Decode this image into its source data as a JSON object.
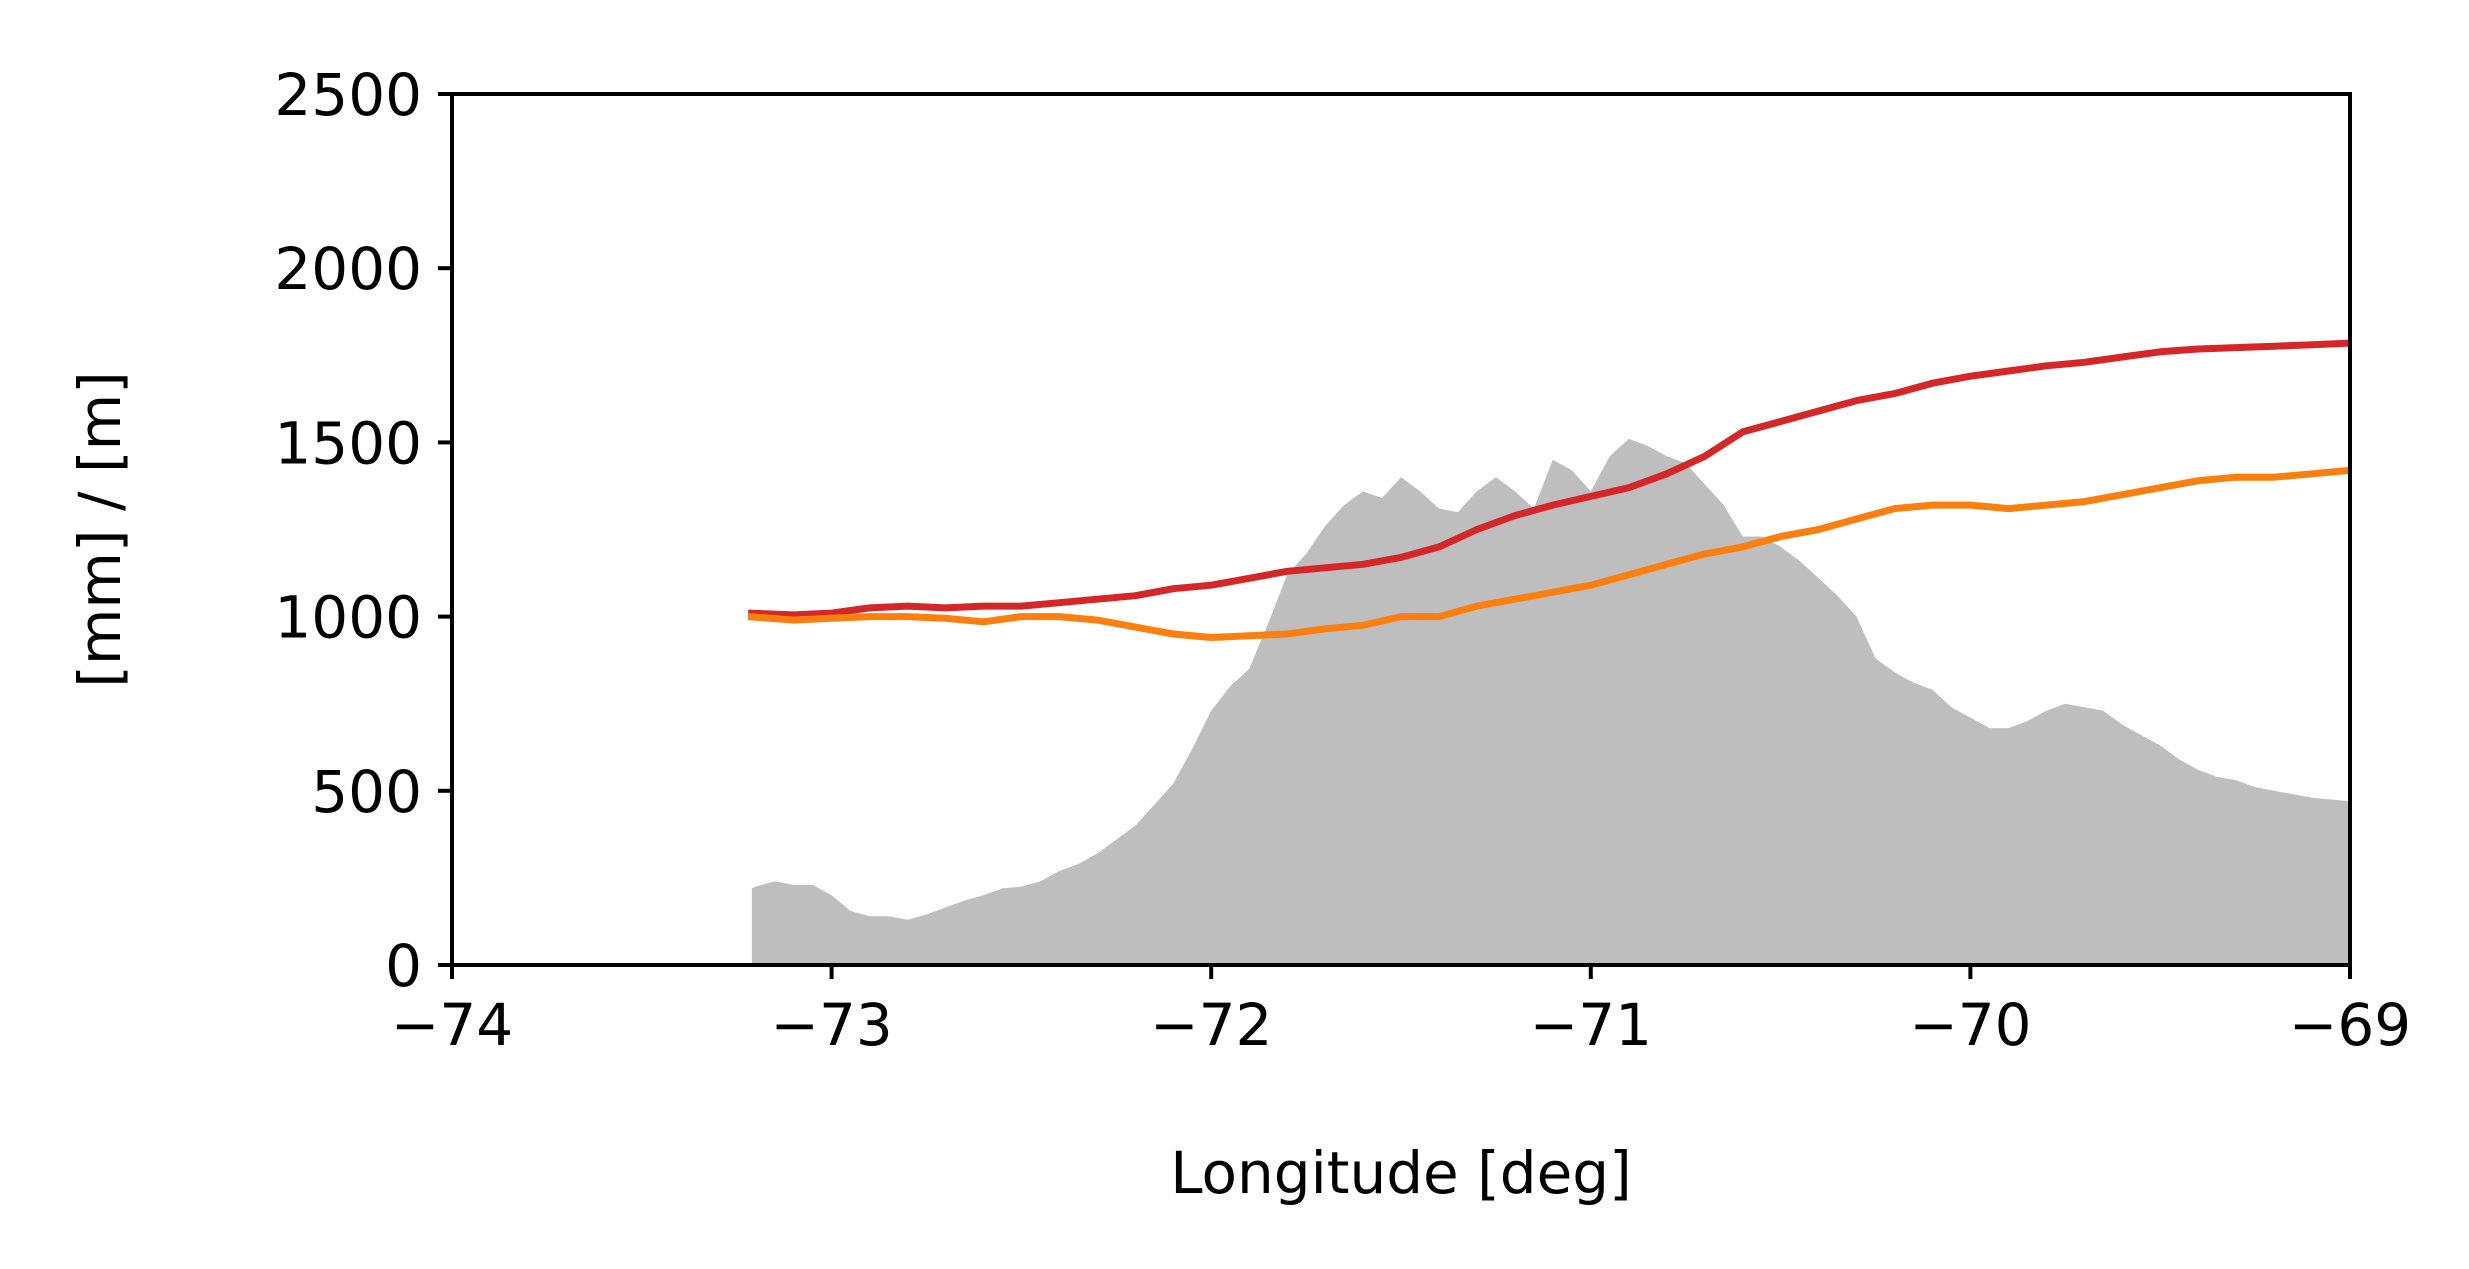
{
  "chart_data": {
    "type": "line",
    "title": "",
    "xlabel": "Longitude [deg]",
    "ylabel": "[mm] / [m]",
    "xlim": [
      -74,
      -69
    ],
    "ylim": [
      0,
      2500
    ],
    "xticks": [
      -74,
      -73,
      -72,
      -71,
      -70,
      -69
    ],
    "xtick_labels": [
      "−74",
      "−73",
      "−72",
      "−71",
      "−70",
      "−69"
    ],
    "yticks": [
      0,
      500,
      1000,
      1500,
      2000,
      2500
    ],
    "ytick_labels": [
      "0",
      "500",
      "1000",
      "1500",
      "2000",
      "2500"
    ],
    "grid": false,
    "legend": "none",
    "series": [
      {
        "kind": "area",
        "color": "#bebebe",
        "x": [
          -73.21,
          -73.2,
          -73.15,
          -73.1,
          -73.05,
          -73.0,
          -72.95,
          -72.9,
          -72.85,
          -72.8,
          -72.75,
          -72.7,
          -72.65,
          -72.6,
          -72.55,
          -72.5,
          -72.45,
          -72.4,
          -72.35,
          -72.3,
          -72.25,
          -72.2,
          -72.15,
          -72.1,
          -72.05,
          -72.0,
          -71.95,
          -71.9,
          -71.85,
          -71.8,
          -71.75,
          -71.7,
          -71.65,
          -71.6,
          -71.55,
          -71.5,
          -71.45,
          -71.4,
          -71.35,
          -71.3,
          -71.25,
          -71.2,
          -71.15,
          -71.1,
          -71.05,
          -71.0,
          -70.95,
          -70.9,
          -70.85,
          -70.8,
          -70.75,
          -70.7,
          -70.65,
          -70.6,
          -70.55,
          -70.5,
          -70.45,
          -70.4,
          -70.35,
          -70.3,
          -70.25,
          -70.2,
          -70.15,
          -70.1,
          -70.05,
          -70.0,
          -69.95,
          -69.9,
          -69.85,
          -69.8,
          -69.75,
          -69.7,
          -69.65,
          -69.6,
          -69.55,
          -69.5,
          -69.45,
          -69.4,
          -69.35,
          -69.3,
          -69.25,
          -69.2,
          -69.15,
          -69.1,
          -69.05,
          -69.0
        ],
        "y": [
          220,
          225,
          240,
          230,
          230,
          200,
          155,
          140,
          140,
          130,
          145,
          165,
          185,
          200,
          220,
          225,
          240,
          270,
          290,
          320,
          360,
          400,
          460,
          520,
          620,
          730,
          800,
          850,
          980,
          1120,
          1180,
          1260,
          1320,
          1360,
          1340,
          1400,
          1360,
          1310,
          1300,
          1360,
          1400,
          1360,
          1310,
          1450,
          1420,
          1360,
          1460,
          1510,
          1490,
          1460,
          1440,
          1380,
          1320,
          1230,
          1230,
          1200,
          1160,
          1110,
          1060,
          1000,
          880,
          840,
          810,
          790,
          740,
          710,
          680,
          680,
          700,
          730,
          750,
          740,
          730,
          690,
          660,
          630,
          590,
          560,
          540,
          530,
          510,
          500,
          490,
          480,
          475,
          470
        ]
      },
      {
        "kind": "line",
        "color": "#d62728",
        "x": [
          -73.22,
          -73.1,
          -73.0,
          -72.9,
          -72.8,
          -72.7,
          -72.6,
          -72.5,
          -72.4,
          -72.3,
          -72.2,
          -72.1,
          -72.0,
          -71.9,
          -71.8,
          -71.7,
          -71.6,
          -71.5,
          -71.4,
          -71.3,
          -71.2,
          -71.1,
          -71.0,
          -70.9,
          -70.8,
          -70.7,
          -70.6,
          -70.5,
          -70.4,
          -70.3,
          -70.2,
          -70.1,
          -70.0,
          -69.9,
          -69.8,
          -69.7,
          -69.6,
          -69.5,
          -69.4,
          -69.3,
          -69.2,
          -69.1,
          -69.0
        ],
        "y": [
          1010,
          1005,
          1010,
          1025,
          1030,
          1025,
          1030,
          1030,
          1040,
          1050,
          1060,
          1080,
          1090,
          1110,
          1130,
          1140,
          1150,
          1170,
          1200,
          1250,
          1290,
          1320,
          1345,
          1370,
          1410,
          1460,
          1530,
          1560,
          1590,
          1620,
          1640,
          1670,
          1690,
          1705,
          1720,
          1730,
          1745,
          1760,
          1768,
          1772,
          1776,
          1780,
          1785
        ]
      },
      {
        "kind": "line",
        "color": "#ff7f0e",
        "x": [
          -73.22,
          -73.1,
          -73.0,
          -72.9,
          -72.8,
          -72.7,
          -72.6,
          -72.5,
          -72.4,
          -72.3,
          -72.2,
          -72.1,
          -72.0,
          -71.9,
          -71.8,
          -71.7,
          -71.6,
          -71.5,
          -71.4,
          -71.3,
          -71.2,
          -71.1,
          -71.0,
          -70.9,
          -70.8,
          -70.7,
          -70.6,
          -70.5,
          -70.4,
          -70.3,
          -70.2,
          -70.1,
          -70.0,
          -69.9,
          -69.8,
          -69.7,
          -69.6,
          -69.5,
          -69.4,
          -69.3,
          -69.2,
          -69.1,
          -69.0
        ],
        "y": [
          1000,
          990,
          995,
          1000,
          1000,
          995,
          985,
          1000,
          1000,
          990,
          970,
          950,
          940,
          945,
          950,
          965,
          975,
          1000,
          1000,
          1030,
          1050,
          1070,
          1090,
          1120,
          1150,
          1180,
          1200,
          1230,
          1250,
          1280,
          1310,
          1320,
          1320,
          1310,
          1320,
          1330,
          1350,
          1370,
          1390,
          1400,
          1400,
          1410,
          1420
        ]
      }
    ]
  }
}
